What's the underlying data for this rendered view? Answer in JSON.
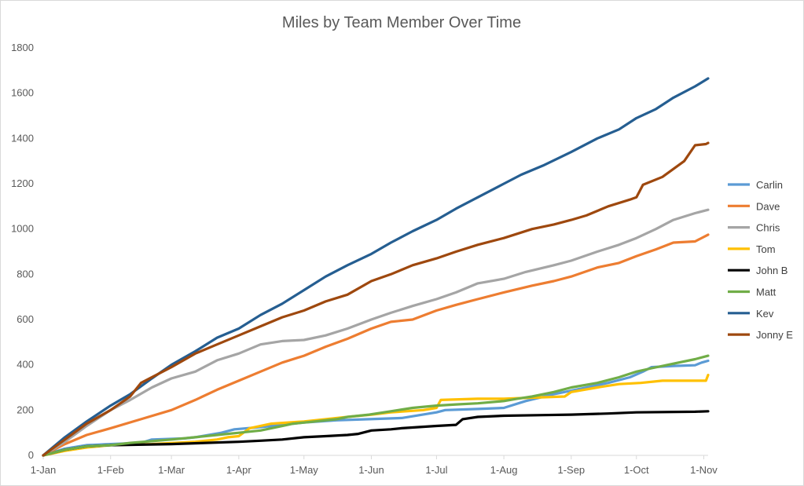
{
  "chart_data": {
    "type": "line",
    "title": "Miles by Team Member Over Time",
    "xlabel": "",
    "ylabel": "",
    "x_ticks": [
      "1-Jan",
      "1-Feb",
      "1-Mar",
      "1-Apr",
      "1-May",
      "1-Jun",
      "1-Jul",
      "1-Aug",
      "1-Sep",
      "1-Oct",
      "1-Nov"
    ],
    "x_tick_days": [
      0,
      31,
      59,
      90,
      120,
      151,
      181,
      212,
      243,
      273,
      304
    ],
    "x_range_days": [
      0,
      306
    ],
    "y_ticks": [
      0,
      200,
      400,
      600,
      800,
      1000,
      1200,
      1400,
      1600,
      1800
    ],
    "ylim": [
      0,
      1800
    ],
    "grid": false,
    "legend_position": "right",
    "series": [
      {
        "name": "Carlin",
        "color": "#5B9BD5",
        "points": [
          [
            0,
            0
          ],
          [
            10,
            30
          ],
          [
            20,
            45
          ],
          [
            31,
            50
          ],
          [
            45,
            55
          ],
          [
            50,
            70
          ],
          [
            65,
            75
          ],
          [
            70,
            80
          ],
          [
            82,
            100
          ],
          [
            88,
            115
          ],
          [
            100,
            125
          ],
          [
            110,
            135
          ],
          [
            120,
            145
          ],
          [
            135,
            155
          ],
          [
            150,
            160
          ],
          [
            165,
            165
          ],
          [
            181,
            190
          ],
          [
            185,
            200
          ],
          [
            200,
            205
          ],
          [
            212,
            210
          ],
          [
            222,
            240
          ],
          [
            235,
            270
          ],
          [
            245,
            290
          ],
          [
            260,
            320
          ],
          [
            270,
            345
          ],
          [
            276,
            370
          ],
          [
            280,
            390
          ],
          [
            290,
            395
          ],
          [
            300,
            398
          ],
          [
            303,
            410
          ],
          [
            306,
            418
          ]
        ]
      },
      {
        "name": "Dave",
        "color": "#ED7D31",
        "points": [
          [
            0,
            0
          ],
          [
            10,
            50
          ],
          [
            20,
            90
          ],
          [
            31,
            120
          ],
          [
            45,
            160
          ],
          [
            59,
            200
          ],
          [
            70,
            245
          ],
          [
            80,
            290
          ],
          [
            90,
            330
          ],
          [
            100,
            370
          ],
          [
            110,
            410
          ],
          [
            120,
            440
          ],
          [
            130,
            480
          ],
          [
            140,
            515
          ],
          [
            151,
            560
          ],
          [
            160,
            590
          ],
          [
            170,
            600
          ],
          [
            181,
            640
          ],
          [
            190,
            665
          ],
          [
            200,
            690
          ],
          [
            212,
            720
          ],
          [
            225,
            750
          ],
          [
            235,
            770
          ],
          [
            243,
            790
          ],
          [
            255,
            830
          ],
          [
            265,
            850
          ],
          [
            273,
            880
          ],
          [
            282,
            910
          ],
          [
            290,
            940
          ],
          [
            300,
            945
          ],
          [
            306,
            975
          ]
        ]
      },
      {
        "name": "Chris",
        "color": "#A5A5A5",
        "points": [
          [
            0,
            0
          ],
          [
            10,
            60
          ],
          [
            20,
            130
          ],
          [
            31,
            200
          ],
          [
            40,
            245
          ],
          [
            50,
            300
          ],
          [
            59,
            340
          ],
          [
            70,
            370
          ],
          [
            80,
            420
          ],
          [
            90,
            450
          ],
          [
            100,
            490
          ],
          [
            110,
            505
          ],
          [
            120,
            510
          ],
          [
            130,
            530
          ],
          [
            140,
            560
          ],
          [
            151,
            600
          ],
          [
            160,
            630
          ],
          [
            170,
            660
          ],
          [
            181,
            690
          ],
          [
            190,
            720
          ],
          [
            200,
            760
          ],
          [
            212,
            780
          ],
          [
            222,
            810
          ],
          [
            235,
            840
          ],
          [
            243,
            860
          ],
          [
            255,
            900
          ],
          [
            265,
            930
          ],
          [
            273,
            960
          ],
          [
            282,
            1000
          ],
          [
            290,
            1040
          ],
          [
            300,
            1070
          ],
          [
            306,
            1085
          ]
        ]
      },
      {
        "name": "Tom",
        "color": "#FFC000",
        "points": [
          [
            0,
            0
          ],
          [
            10,
            20
          ],
          [
            20,
            35
          ],
          [
            31,
            45
          ],
          [
            50,
            50
          ],
          [
            70,
            60
          ],
          [
            80,
            70
          ],
          [
            85,
            80
          ],
          [
            90,
            85
          ],
          [
            95,
            120
          ],
          [
            105,
            140
          ],
          [
            120,
            150
          ],
          [
            140,
            170
          ],
          [
            151,
            180
          ],
          [
            160,
            190
          ],
          [
            175,
            200
          ],
          [
            181,
            210
          ],
          [
            183,
            245
          ],
          [
            200,
            250
          ],
          [
            212,
            250
          ],
          [
            225,
            255
          ],
          [
            240,
            260
          ],
          [
            243,
            280
          ],
          [
            255,
            300
          ],
          [
            265,
            315
          ],
          [
            275,
            320
          ],
          [
            285,
            330
          ],
          [
            300,
            330
          ],
          [
            305,
            330
          ],
          [
            306,
            355
          ]
        ]
      },
      {
        "name": "John B",
        "color": "#000000",
        "points": [
          [
            0,
            0
          ],
          [
            10,
            25
          ],
          [
            20,
            40
          ],
          [
            31,
            45
          ],
          [
            59,
            50
          ],
          [
            90,
            60
          ],
          [
            100,
            65
          ],
          [
            110,
            70
          ],
          [
            120,
            80
          ],
          [
            130,
            85
          ],
          [
            140,
            90
          ],
          [
            145,
            95
          ],
          [
            151,
            110
          ],
          [
            160,
            115
          ],
          [
            165,
            120
          ],
          [
            181,
            130
          ],
          [
            190,
            135
          ],
          [
            193,
            160
          ],
          [
            200,
            170
          ],
          [
            212,
            175
          ],
          [
            230,
            178
          ],
          [
            243,
            180
          ],
          [
            260,
            185
          ],
          [
            273,
            190
          ],
          [
            300,
            193
          ],
          [
            306,
            195
          ]
        ]
      },
      {
        "name": "Matt",
        "color": "#70AD47",
        "points": [
          [
            0,
            0
          ],
          [
            10,
            25
          ],
          [
            20,
            40
          ],
          [
            31,
            45
          ],
          [
            40,
            55
          ],
          [
            59,
            70
          ],
          [
            70,
            80
          ],
          [
            80,
            90
          ],
          [
            90,
            100
          ],
          [
            100,
            110
          ],
          [
            105,
            120
          ],
          [
            110,
            130
          ],
          [
            115,
            140
          ],
          [
            125,
            150
          ],
          [
            135,
            160
          ],
          [
            140,
            170
          ],
          [
            150,
            180
          ],
          [
            160,
            195
          ],
          [
            170,
            210
          ],
          [
            181,
            220
          ],
          [
            190,
            225
          ],
          [
            200,
            230
          ],
          [
            212,
            240
          ],
          [
            218,
            250
          ],
          [
            225,
            260
          ],
          [
            235,
            280
          ],
          [
            243,
            300
          ],
          [
            255,
            320
          ],
          [
            265,
            345
          ],
          [
            273,
            370
          ],
          [
            280,
            385
          ],
          [
            290,
            405
          ],
          [
            300,
            425
          ],
          [
            306,
            440
          ]
        ]
      },
      {
        "name": "Kev",
        "color": "#255E91",
        "points": [
          [
            0,
            0
          ],
          [
            10,
            80
          ],
          [
            20,
            150
          ],
          [
            31,
            220
          ],
          [
            40,
            270
          ],
          [
            50,
            340
          ],
          [
            59,
            400
          ],
          [
            70,
            460
          ],
          [
            80,
            520
          ],
          [
            90,
            560
          ],
          [
            100,
            620
          ],
          [
            110,
            670
          ],
          [
            120,
            730
          ],
          [
            130,
            790
          ],
          [
            140,
            840
          ],
          [
            151,
            890
          ],
          [
            160,
            940
          ],
          [
            170,
            990
          ],
          [
            181,
            1040
          ],
          [
            190,
            1090
          ],
          [
            200,
            1140
          ],
          [
            212,
            1200
          ],
          [
            220,
            1240
          ],
          [
            230,
            1280
          ],
          [
            243,
            1340
          ],
          [
            255,
            1400
          ],
          [
            265,
            1440
          ],
          [
            273,
            1490
          ],
          [
            282,
            1530
          ],
          [
            290,
            1580
          ],
          [
            300,
            1630
          ],
          [
            306,
            1665
          ]
        ]
      },
      {
        "name": "Jonny E",
        "color": "#9E480E",
        "points": [
          [
            0,
            0
          ],
          [
            10,
            70
          ],
          [
            20,
            140
          ],
          [
            31,
            200
          ],
          [
            40,
            260
          ],
          [
            45,
            320
          ],
          [
            59,
            390
          ],
          [
            70,
            450
          ],
          [
            80,
            490
          ],
          [
            90,
            530
          ],
          [
            100,
            570
          ],
          [
            110,
            610
          ],
          [
            120,
            640
          ],
          [
            130,
            680
          ],
          [
            140,
            710
          ],
          [
            151,
            770
          ],
          [
            160,
            800
          ],
          [
            170,
            840
          ],
          [
            181,
            870
          ],
          [
            190,
            900
          ],
          [
            200,
            930
          ],
          [
            212,
            960
          ],
          [
            225,
            1000
          ],
          [
            235,
            1020
          ],
          [
            243,
            1040
          ],
          [
            250,
            1060
          ],
          [
            260,
            1100
          ],
          [
            270,
            1130
          ],
          [
            273,
            1140
          ],
          [
            276,
            1195
          ],
          [
            285,
            1230
          ],
          [
            295,
            1300
          ],
          [
            300,
            1370
          ],
          [
            305,
            1375
          ],
          [
            306,
            1380
          ]
        ]
      }
    ]
  }
}
